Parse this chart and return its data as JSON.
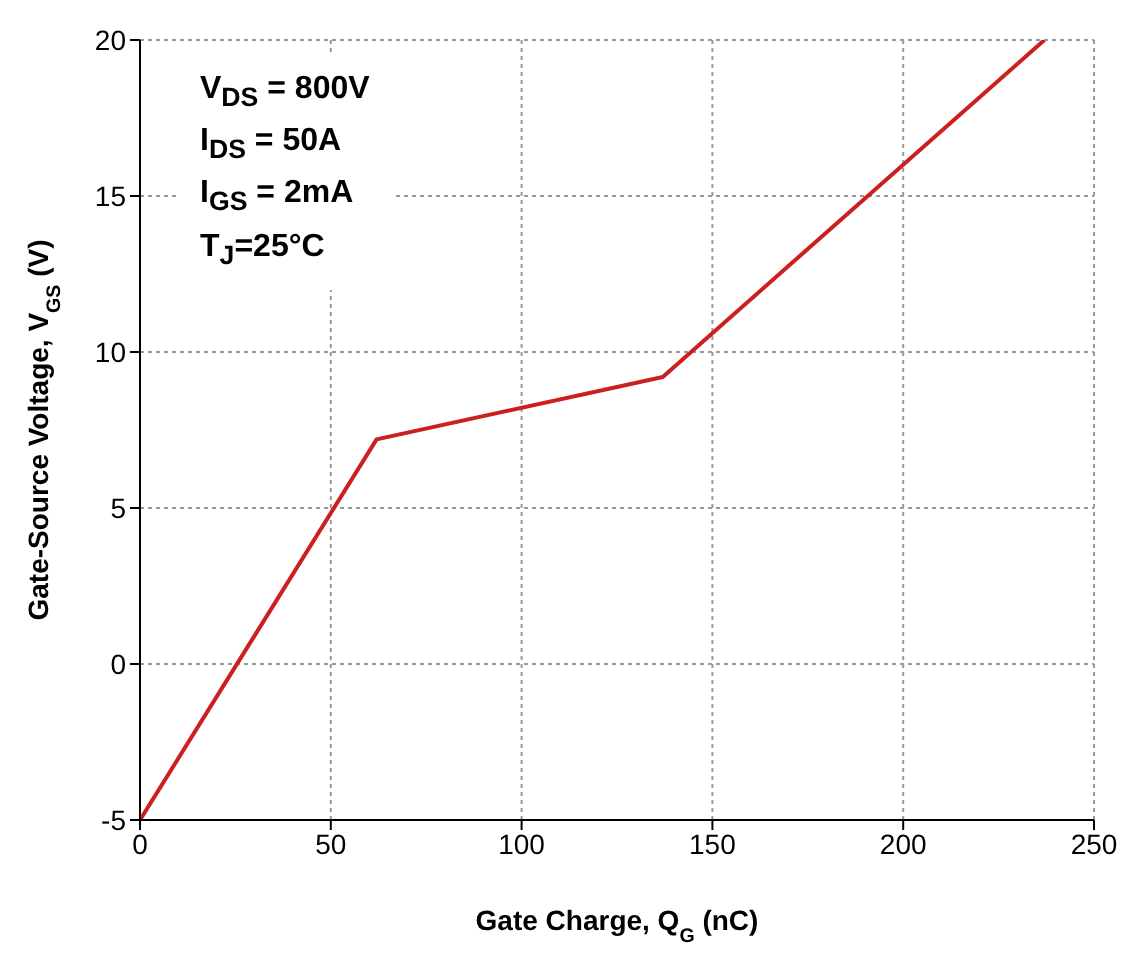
{
  "chart_data": {
    "type": "line",
    "xlabel": "Gate Charge, Q$_{G}$ (nC)",
    "ylabel": "Gate-Source Voltage, V$_{GS}$ (V)",
    "x": [
      0,
      62,
      137,
      237
    ],
    "series": [
      {
        "color": "#cc1f1f",
        "values": [
          -5,
          7.2,
          9.2,
          20
        ]
      }
    ],
    "xlim": [
      0,
      250
    ],
    "xticks": [
      0,
      50,
      100,
      150,
      200,
      250
    ],
    "ylim": [
      -5,
      20
    ],
    "yticks": [
      -5,
      0,
      5,
      10,
      15,
      20
    ],
    "grid": true,
    "marker": "none",
    "line_style": "solid",
    "annotations": [
      "V$_{DS}$ = 800V",
      "I$_{DS}$ = 50A",
      "I$_{GS}$ = 2mA",
      "T$_{J}$=25°C"
    ]
  }
}
